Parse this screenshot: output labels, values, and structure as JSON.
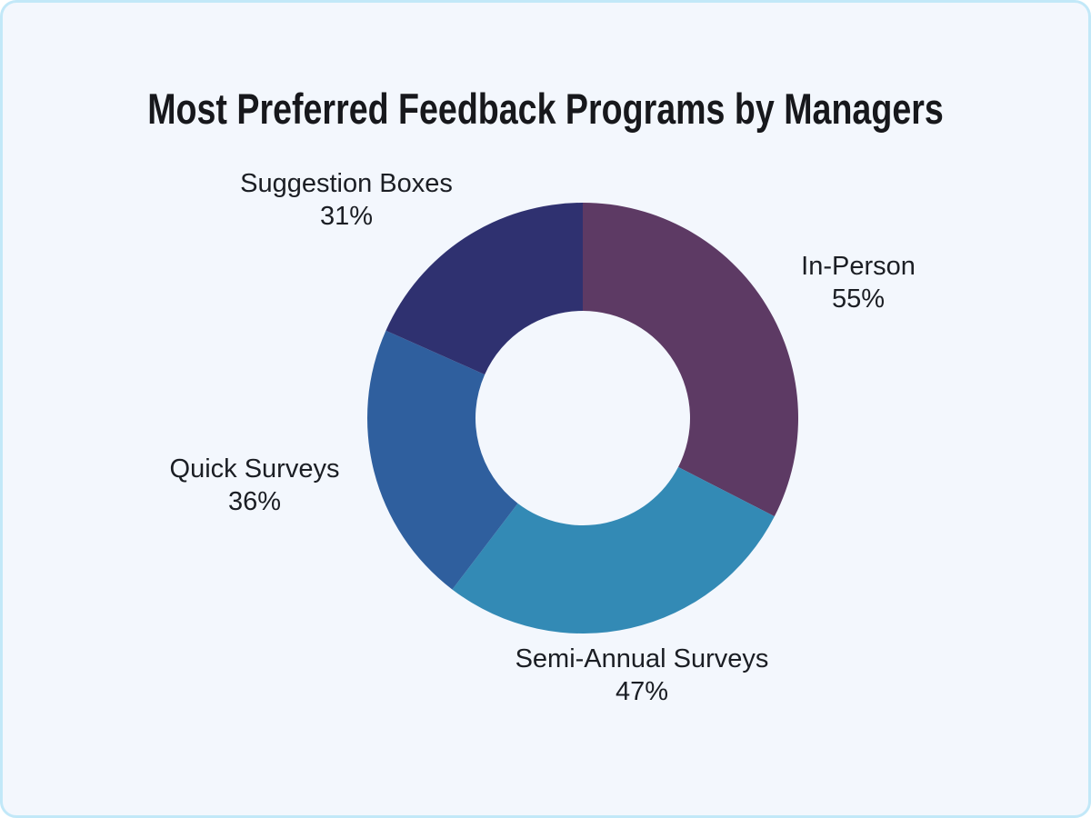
{
  "title": "Most Preferred Feedback Programs by Managers",
  "card": {
    "background": "#f3f7fd",
    "border_color": "#c2e8f8"
  },
  "chart_data": {
    "type": "pie",
    "variant": "donut",
    "title": "Most Preferred Feedback Programs by Managers",
    "direction": "clockwise",
    "start_angle_deg": 0,
    "donut_hole_ratio": 0.5,
    "legend": "none",
    "labels_position": "outside",
    "categories": [
      "In-Person",
      "Semi-Annual Surveys",
      "Quick Surveys",
      "Suggestion Boxes"
    ],
    "values": [
      55,
      47,
      36,
      31
    ],
    "slices": [
      {
        "label": "In-Person",
        "value": 55,
        "percent_label": "55%",
        "color": "#5d3a64"
      },
      {
        "label": "Semi-Annual Surveys",
        "value": 47,
        "percent_label": "47%",
        "color": "#338ab5"
      },
      {
        "label": "Quick Surveys",
        "value": 36,
        "percent_label": "36%",
        "color": "#2f5f9e"
      },
      {
        "label": "Suggestion Boxes",
        "value": 31,
        "percent_label": "31%",
        "color": "#2f3170"
      }
    ]
  }
}
